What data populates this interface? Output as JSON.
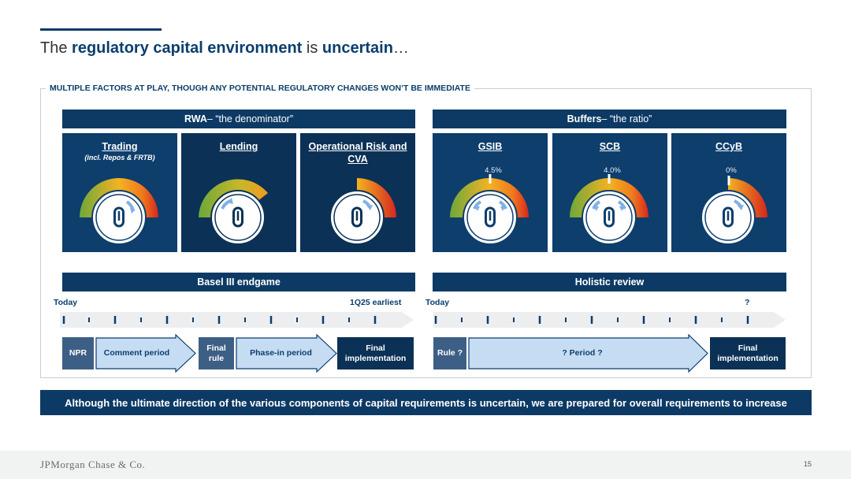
{
  "title": {
    "part1": "The ",
    "part2": "regulatory capital environment",
    "part3": " is ",
    "part4": "uncertain",
    "part5": "…"
  },
  "frame_label": "MULTIPLE FACTORS AT PLAY, THOUGH ANY POTENTIAL REGULATORY CHANGES WON’T BE IMMEDIATE",
  "rwa_header": {
    "bold": "RWA",
    "rest": " – “the denominator”"
  },
  "buffers_header": {
    "bold": "Buffers",
    "rest": " – “the ratio”"
  },
  "cards": [
    {
      "title": "Trading",
      "subtitle": "(incl. Repos & FRTB)",
      "pct": "",
      "gauge_icon": "gauge-full-arrow-up-icon"
    },
    {
      "title": "Lending",
      "subtitle": "",
      "pct": "",
      "gauge_icon": "gauge-partial-arrow-up-icon"
    },
    {
      "title": "Operational Risk and CVA",
      "subtitle": "",
      "pct": "",
      "gauge_icon": "gauge-high-arrow-up-icon"
    },
    {
      "title": "GSIB",
      "subtitle": "",
      "pct": "4.5%",
      "gauge_icon": "gauge-bidirectional-icon"
    },
    {
      "title": "SCB",
      "subtitle": "",
      "pct": "4.0%",
      "gauge_icon": "gauge-bidirectional-icon"
    },
    {
      "title": "CCyB",
      "subtitle": "",
      "pct": "0%",
      "gauge_icon": "gauge-low-arrow-up-icon"
    }
  ],
  "basel_bar": "Basel III endgame",
  "holistic_bar": "Holistic review",
  "timeline_left": {
    "start": "Today",
    "end": "1Q25 earliest"
  },
  "timeline_right": {
    "start": "Today",
    "end": "?"
  },
  "steps_left": {
    "npr": "NPR",
    "comment": "Comment period",
    "final_rule": "Final rule",
    "phase_in": "Phase-in period",
    "final_impl": "Final implementation"
  },
  "steps_right": {
    "rule": "Rule ?",
    "period": "? Period ?",
    "final_impl": "Final implementation"
  },
  "banner": "Although the ultimate direction of the various components of capital requirements is uncertain, we are prepared for overall requirements to increase",
  "footer": {
    "logo": "JPMorgan Chase & Co.",
    "page": "15"
  },
  "colors": {
    "navy": "#0c3a64",
    "card_blue": "#0d3e6c",
    "arrow_fill": "#c6dcf3",
    "gauge_green": "#6da83a",
    "gauge_orange": "#f39a1f",
    "gauge_red": "#d6271e"
  }
}
